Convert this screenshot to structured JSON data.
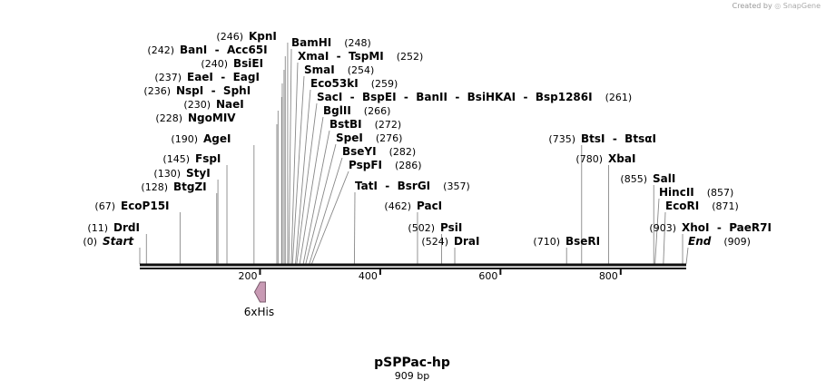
{
  "credit": {
    "prefix": "Created by",
    "brand": "SnapGene"
  },
  "map": {
    "name": "pSPPac-hp",
    "length_label": "909 bp",
    "length": 909
  },
  "ruler": {
    "ticks": [
      200,
      400,
      600,
      800
    ]
  },
  "feature": {
    "name": "6xHis",
    "start": 191,
    "end": 209,
    "direction": "reverse",
    "color": "#c89ab4"
  },
  "sites": [
    {
      "label": "Start",
      "pos_label": "(0)",
      "pos": 0,
      "italic": true
    },
    {
      "label": "DrdI",
      "pos_label": "(11)",
      "pos": 11
    },
    {
      "label": "EcoP15I",
      "pos_label": "(67)",
      "pos": 67
    },
    {
      "label": "BtgZI",
      "pos_label": "(128)",
      "pos": 128
    },
    {
      "label": "StyI",
      "pos_label": "(130)",
      "pos": 130
    },
    {
      "label": "FspI",
      "pos_label": "(145)",
      "pos": 145
    },
    {
      "label": "AgeI",
      "pos_label": "(190)",
      "pos": 190
    },
    {
      "label": "NgoMIV",
      "pos_label": "(228)",
      "pos": 228
    },
    {
      "label": "NaeI",
      "pos_label": "(230)",
      "pos": 230
    },
    {
      "label": "NspI  -  SphI",
      "pos_label": "(236)",
      "pos": 236
    },
    {
      "label": "EaeI  -  EagI",
      "pos_label": "(237)",
      "pos": 237
    },
    {
      "label": "BsiEI",
      "pos_label": "(240)",
      "pos": 240
    },
    {
      "label": "BanI  -  Acc65I",
      "pos_label": "(242)",
      "pos": 242
    },
    {
      "label": "KpnI",
      "pos_label": "(246)",
      "pos": 246
    },
    {
      "label": "BamHI",
      "pos_label": "(248)",
      "pos": 248
    },
    {
      "label": "XmaI  -  TspMI",
      "pos_label": "(252)",
      "pos": 252
    },
    {
      "label": "SmaI",
      "pos_label": "(254)",
      "pos": 254
    },
    {
      "label": "Eco53kI",
      "pos_label": "(259)",
      "pos": 259
    },
    {
      "label": "SacI  -  BspEI  -  BanII  -  BsiHKAI  -  Bsp1286I",
      "pos_label": "(261)",
      "pos": 261
    },
    {
      "label": "BglII",
      "pos_label": "(266)",
      "pos": 266
    },
    {
      "label": "BstBI",
      "pos_label": "(272)",
      "pos": 272
    },
    {
      "label": "SpeI",
      "pos_label": "(276)",
      "pos": 276
    },
    {
      "label": "BseYI",
      "pos_label": "(282)",
      "pos": 282
    },
    {
      "label": "PspFI",
      "pos_label": "(286)",
      "pos": 286
    },
    {
      "label": "TatI  -  BsrGI",
      "pos_label": "(357)",
      "pos": 357
    },
    {
      "label": "PacI",
      "pos_label": "(462)",
      "pos": 462
    },
    {
      "label": "PsiI",
      "pos_label": "(502)",
      "pos": 502
    },
    {
      "label": "DraI",
      "pos_label": "(524)",
      "pos": 524
    },
    {
      "label": "BseRI",
      "pos_label": "(710)",
      "pos": 710
    },
    {
      "label": "BtsI  -  BtsαI",
      "pos_label": "(735)",
      "pos": 735
    },
    {
      "label": "XbaI",
      "pos_label": "(780)",
      "pos": 780
    },
    {
      "label": "SalI",
      "pos_label": "(855)",
      "pos": 855
    },
    {
      "label": "HincII",
      "pos_label": "(857)",
      "pos": 857
    },
    {
      "label": "EcoRI",
      "pos_label": "(871)",
      "pos": 871
    },
    {
      "label": "XhoI  -  PaeR7I",
      "pos_label": "(903)",
      "pos": 903
    },
    {
      "label": "End",
      "pos_label": "(909)",
      "pos": 909,
      "italic": true
    }
  ]
}
